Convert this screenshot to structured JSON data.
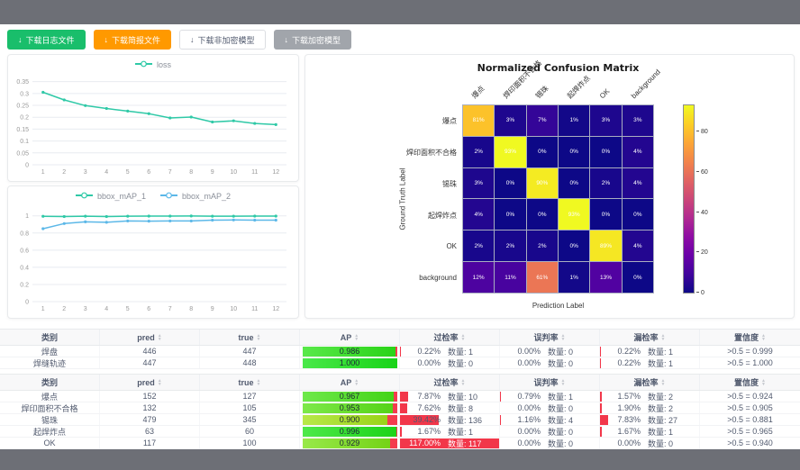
{
  "toolbar": {
    "buttons": [
      {
        "name": "download-log-button",
        "label": "下载日志文件",
        "variant": "green"
      },
      {
        "name": "download-report-button",
        "label": "下载简报文件",
        "variant": "orange"
      },
      {
        "name": "download-unencrypted-model-button",
        "label": "下载非加密模型",
        "variant": "white"
      },
      {
        "name": "download-encrypted-model-button",
        "label": "下载加密模型",
        "variant": "gray"
      }
    ]
  },
  "chart_data": [
    {
      "id": "loss",
      "type": "line",
      "x": [
        1,
        2,
        3,
        4,
        5,
        6,
        7,
        8,
        9,
        10,
        11,
        12
      ],
      "yticks": [
        0,
        0.05,
        0.1,
        0.15,
        0.2,
        0.25,
        0.3,
        0.35
      ],
      "ylim": [
        0,
        0.36
      ],
      "legend_position": "top",
      "grid": true,
      "series": [
        {
          "name": "loss",
          "color": "#2fc9a7",
          "values": [
            0.305,
            0.273,
            0.249,
            0.237,
            0.226,
            0.215,
            0.197,
            0.201,
            0.18,
            0.185,
            0.174,
            0.169
          ]
        }
      ]
    },
    {
      "id": "bbox_map",
      "type": "line",
      "x": [
        1,
        2,
        3,
        4,
        5,
        6,
        7,
        8,
        9,
        10,
        11,
        12
      ],
      "yticks": [
        0,
        0.2,
        0.4,
        0.6,
        0.8,
        1
      ],
      "ylim": [
        0,
        1.06
      ],
      "legend_position": "top",
      "grid": true,
      "series": [
        {
          "name": "bbox_mAP_1",
          "color": "#2fc9a7",
          "values": [
            0.995,
            0.992,
            0.996,
            0.992,
            0.996,
            0.997,
            0.997,
            0.998,
            0.996,
            0.996,
            0.997,
            0.997
          ]
        },
        {
          "name": "bbox_mAP_2",
          "color": "#5cb8e8",
          "values": [
            0.85,
            0.91,
            0.93,
            0.925,
            0.94,
            0.938,
            0.94,
            0.94,
            0.95,
            0.952,
            0.95,
            0.95
          ]
        }
      ]
    },
    {
      "id": "confusion_matrix",
      "type": "heatmap",
      "title": "Normalized Confusion Matrix",
      "xlabel": "Prediction Label",
      "ylabel": "Ground Truth Label",
      "labels": [
        "爆点",
        "焊印面积不合格",
        "锡珠",
        "起焊炸点",
        "OK",
        "background"
      ],
      "values": [
        [
          81,
          3,
          7,
          1,
          3,
          3
        ],
        [
          2,
          93,
          0,
          0,
          0,
          4
        ],
        [
          3,
          0,
          90,
          0,
          2,
          4
        ],
        [
          4,
          0,
          0,
          93,
          0,
          0
        ],
        [
          2,
          2,
          2,
          0,
          89,
          4
        ],
        [
          12,
          11,
          61,
          1,
          13,
          0
        ]
      ],
      "unit": "%",
      "vmin": 0,
      "vmax": 93,
      "colormap": "plasma",
      "colorbar_ticks": [
        0,
        20,
        40,
        60,
        80
      ]
    }
  ],
  "tables": [
    {
      "columns": [
        {
          "label": "类别",
          "sortable": false
        },
        {
          "label": "pred",
          "sortable": true
        },
        {
          "label": "true",
          "sortable": true
        },
        {
          "label": "AP",
          "sortable": true
        },
        {
          "label": "过检率",
          "sortable": true
        },
        {
          "label": "误判率",
          "sortable": true
        },
        {
          "label": "漏检率",
          "sortable": true
        },
        {
          "label": "置信度",
          "sortable": true
        }
      ],
      "rows": [
        {
          "name": "焊盘",
          "pred": "446",
          "true": "447",
          "ap": {
            "text": "0.986",
            "bar": 0.986
          },
          "overkill": {
            "pct": "0.22%",
            "count": "数量: 1",
            "bar": 0.22
          },
          "misjudge": {
            "pct": "0.00%",
            "count": "数量: 0",
            "bar": 0
          },
          "miss": {
            "pct": "0.22%",
            "count": "数量: 1",
            "bar": 0.22
          },
          "confidence": ">0.5 = 0.999"
        },
        {
          "name": "焊缝轨迹",
          "pred": "447",
          "true": "448",
          "ap": {
            "text": "1.000",
            "bar": 1.0
          },
          "overkill": {
            "pct": "0.00%",
            "count": "数量: 0",
            "bar": 0
          },
          "misjudge": {
            "pct": "0.00%",
            "count": "数量: 0",
            "bar": 0
          },
          "miss": {
            "pct": "0.22%",
            "count": "数量: 1",
            "bar": 0.22
          },
          "confidence": ">0.5 = 1.000"
        }
      ]
    },
    {
      "columns": [
        {
          "label": "类别",
          "sortable": false
        },
        {
          "label": "pred",
          "sortable": true
        },
        {
          "label": "true",
          "sortable": true
        },
        {
          "label": "AP",
          "sortable": true
        },
        {
          "label": "过检率",
          "sortable": true
        },
        {
          "label": "误判率",
          "sortable": true
        },
        {
          "label": "漏检率",
          "sortable": true
        },
        {
          "label": "置信度",
          "sortable": true
        }
      ],
      "rows": [
        {
          "name": "爆点",
          "pred": "152",
          "true": "127",
          "ap": {
            "text": "0.967",
            "bar": 0.967
          },
          "overkill": {
            "pct": "7.87%",
            "count": "数量: 10",
            "bar": 7.87
          },
          "misjudge": {
            "pct": "0.79%",
            "count": "数量: 1",
            "bar": 0.79
          },
          "miss": {
            "pct": "1.57%",
            "count": "数量: 2",
            "bar": 1.57
          },
          "confidence": ">0.5 = 0.924"
        },
        {
          "name": "焊印面积不合格",
          "pred": "132",
          "true": "105",
          "ap": {
            "text": "0.953",
            "bar": 0.953
          },
          "overkill": {
            "pct": "7.62%",
            "count": "数量: 8",
            "bar": 7.62
          },
          "misjudge": {
            "pct": "0.00%",
            "count": "数量: 0",
            "bar": 0
          },
          "miss": {
            "pct": "1.90%",
            "count": "数量: 2",
            "bar": 1.9
          },
          "confidence": ">0.5 = 0.905"
        },
        {
          "name": "锡珠",
          "pred": "479",
          "true": "345",
          "ap": {
            "text": "0.900",
            "bar": 0.9
          },
          "overkill": {
            "pct": "39.42%",
            "count": "数量: 136",
            "bar": 39.42
          },
          "misjudge": {
            "pct": "1.16%",
            "count": "数量: 4",
            "bar": 1.16
          },
          "miss": {
            "pct": "7.83%",
            "count": "数量: 27",
            "bar": 7.83
          },
          "confidence": ">0.5 = 0.881"
        },
        {
          "name": "起焊炸点",
          "pred": "63",
          "true": "60",
          "ap": {
            "text": "0.996",
            "bar": 0.996
          },
          "overkill": {
            "pct": "1.67%",
            "count": "数量: 1",
            "bar": 1.67
          },
          "misjudge": {
            "pct": "0.00%",
            "count": "数量: 0",
            "bar": 0
          },
          "miss": {
            "pct": "1.67%",
            "count": "数量: 1",
            "bar": 1.67
          },
          "confidence": ">0.5 = 0.965"
        },
        {
          "name": "OK",
          "pred": "117",
          "true": "100",
          "ap": {
            "text": "0.929",
            "bar": 0.929
          },
          "overkill": {
            "pct": "117.00%",
            "count": "数量: 117",
            "bar": 117
          },
          "misjudge": {
            "pct": "0.00%",
            "count": "数量: 0",
            "bar": 0
          },
          "miss": {
            "pct": "0.00%",
            "count": "数量: 0",
            "bar": 0
          },
          "confidence": ">0.5 = 0.940"
        }
      ]
    }
  ],
  "colors": {
    "accent_green": "#19be6b",
    "accent_orange": "#ff9900",
    "bar_red": "#f2374a",
    "ap_rest_red": "#f43c4e",
    "line_teal": "#2fc9a7",
    "line_blue": "#5cb8e8",
    "chrome_gray": "#6d6f76"
  }
}
